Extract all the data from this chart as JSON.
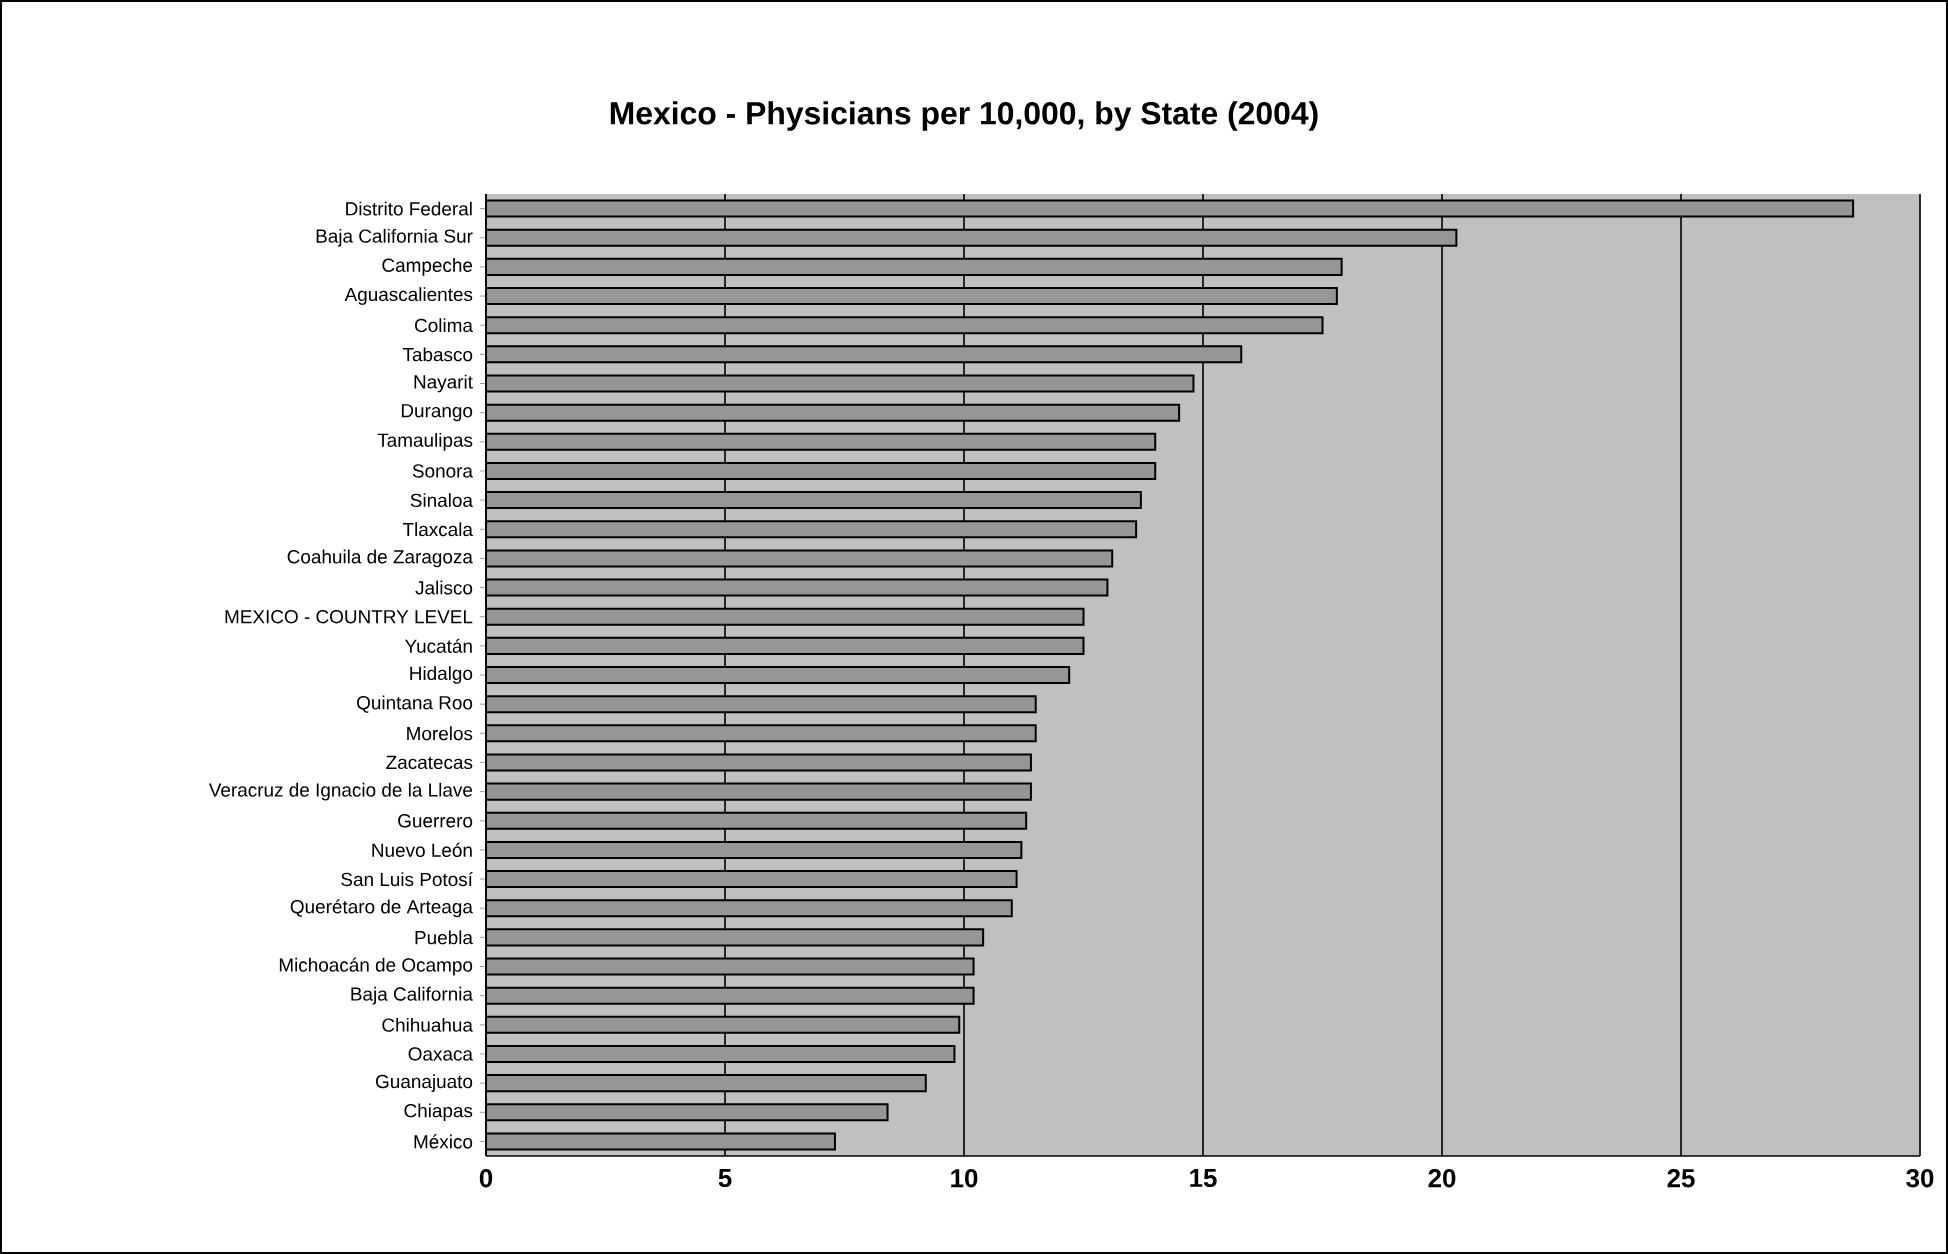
{
  "chart_data": {
    "type": "bar",
    "orientation": "horizontal",
    "title": "Mexico - Physicians per 10,000, by State (2004)",
    "categories": [
      "Distrito Federal",
      "Baja California Sur",
      "Campeche",
      "Aguascalientes",
      "Colima",
      "Tabasco",
      "Nayarit",
      "Durango",
      "Tamaulipas",
      "Sonora",
      "Sinaloa",
      "Tlaxcala",
      "Coahuila de Zaragoza",
      "Jalisco",
      "MEXICO - COUNTRY LEVEL",
      "Yucatán",
      "Hidalgo",
      "Quintana Roo",
      "Morelos",
      "Zacatecas",
      "Veracruz de Ignacio de la Llave",
      "Guerrero",
      "Nuevo León",
      "San Luis Potosí",
      "Querétaro de Arteaga",
      "Puebla",
      "Michoacán de Ocampo",
      "Baja California",
      "Chihuahua",
      "Oaxaca",
      "Guanajuato",
      "Chiapas",
      "México"
    ],
    "values": [
      28.6,
      20.3,
      17.9,
      17.8,
      17.5,
      15.8,
      14.8,
      14.5,
      14.0,
      14.0,
      13.7,
      13.6,
      13.1,
      13.0,
      12.5,
      12.5,
      12.2,
      11.5,
      11.5,
      11.4,
      11.4,
      11.3,
      11.2,
      11.1,
      11.0,
      10.4,
      10.2,
      10.2,
      9.9,
      9.8,
      9.2,
      8.4,
      7.3
    ],
    "color": "#969696",
    "xlim": [
      0,
      30
    ],
    "xticks": [
      0,
      5,
      10,
      15,
      20,
      25,
      30
    ],
    "grid": "x"
  }
}
